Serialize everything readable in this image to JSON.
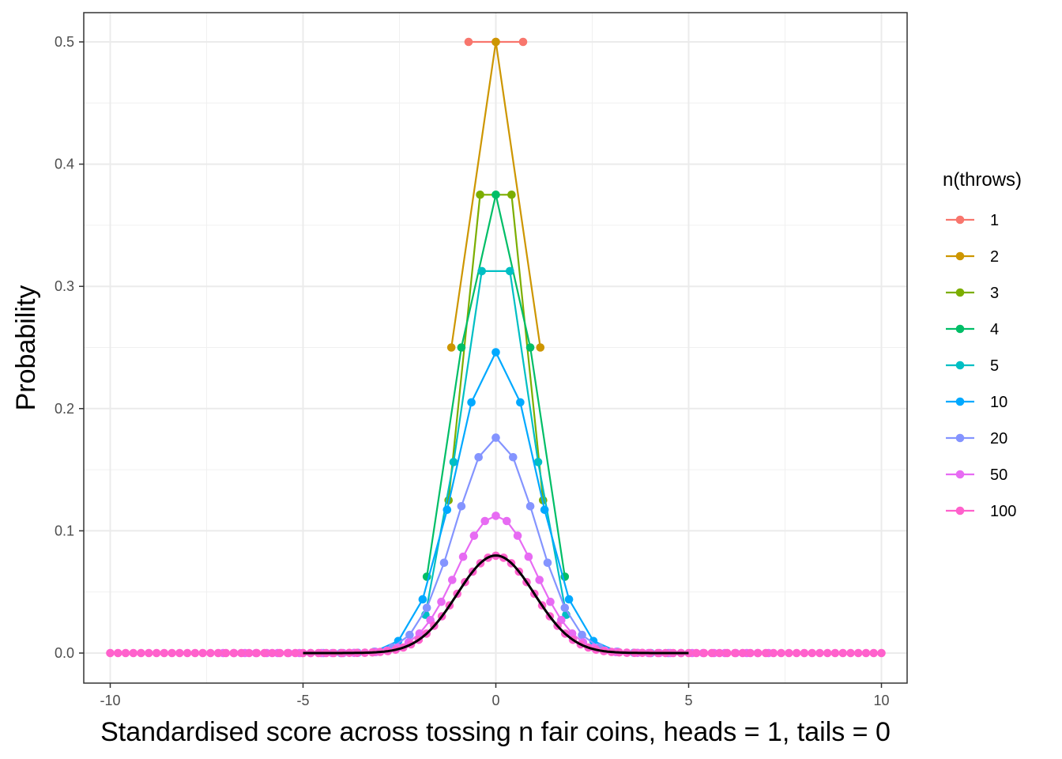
{
  "chart_data": {
    "type": "line",
    "title": "",
    "xlabel": "Standardised score across tossing n fair coins, heads = 1, tails = 0",
    "ylabel": "Probability",
    "xlim": [
      -10.4,
      10.9
    ],
    "ylim": [
      -0.025,
      0.524
    ],
    "x_ticks": [
      -10,
      -5,
      0,
      5,
      10
    ],
    "x_tick_labels": [
      "-10",
      "-5",
      "0",
      "5",
      "10"
    ],
    "y_ticks": [
      0,
      0.1,
      0.2,
      0.3,
      0.4,
      0.5
    ],
    "y_tick_labels": [
      "0.0",
      "0.1",
      "0.2",
      "0.3",
      "0.4",
      "0.5"
    ],
    "grid": true,
    "legend": {
      "title": "n(throws)",
      "position": "right"
    },
    "series": [
      {
        "name": "1",
        "color": "#F8766D",
        "x": [
          -0.7071,
          0,
          0.7071
        ],
        "y": [
          0.5,
          0.5,
          0.5
        ]
      },
      {
        "name": "2",
        "color": "#CD9600",
        "x": [
          -1.1547,
          0,
          1.1547
        ],
        "y": [
          0.25,
          0.5,
          0.25
        ]
      },
      {
        "name": "3",
        "color": "#7CAE00",
        "x": [
          -1.2247,
          -0.4082,
          0.4082,
          1.2247
        ],
        "y": [
          0.125,
          0.375,
          0.375,
          0.125
        ]
      },
      {
        "name": "4",
        "color": "#00BE67",
        "x": [
          -1.7889,
          -0.8944,
          0,
          0.8944,
          1.7889
        ],
        "y": [
          0.0625,
          0.25,
          0.375,
          0.25,
          0.0625
        ]
      },
      {
        "name": "5",
        "color": "#00BFC4",
        "x": [
          -1.8257,
          -1.0954,
          -0.3651,
          0.3651,
          1.0954,
          1.8257
        ],
        "y": [
          0.0313,
          0.1563,
          0.3125,
          0.3125,
          0.1563,
          0.0313
        ]
      },
      {
        "name": "10",
        "color": "#00A9FF",
        "x": [
          -2.3355,
          -1.8683,
          -1.4012,
          -0.9342,
          -0.4671,
          0,
          0.4671,
          0.9342,
          1.4012,
          1.8683,
          2.3355
        ],
        "y": [
          0.001,
          0.0098,
          0.0439,
          0.1172,
          0.2051,
          0.2461,
          0.2051,
          0.1172,
          0.0439,
          0.0098,
          0.001
        ]
      },
      {
        "name": "20",
        "color": "#8494FF",
        "x": [
          -2.4518,
          -2.1292,
          -1.8066,
          -1.484,
          -1.1614,
          -0.8388,
          -0.5162,
          -0.1936,
          0,
          0.1936,
          0.5162,
          0.8388,
          1.1614,
          1.484,
          1.8066,
          2.1292,
          2.4518
        ],
        "y": [
          0.0046,
          0.0148,
          0.037,
          0.0739,
          0.1201,
          0.1602,
          0.1762,
          0.1602,
          0.1762,
          0.1602,
          0.1602,
          0.1201,
          0.0739,
          0.037,
          0.0148,
          0.0046,
          0.0011
        ]
      },
      {
        "name": "50",
        "color": "#E76BF3",
        "x": [
          -3.2,
          -2.8,
          -2.4,
          -2.0,
          -1.6,
          -1.2,
          -0.8,
          -0.4,
          0,
          0.4,
          0.8,
          1.2,
          1.6,
          2.0,
          2.4,
          2.8,
          3.2
        ],
        "y": [
          0.0016,
          0.0057,
          0.016,
          0.0419,
          0.0788,
          0.1123,
          0.1123,
          0.1123,
          0.1123,
          0.1123,
          0.1123,
          0.0788,
          0.0419,
          0.016,
          0.0057,
          0.0016,
          0.0004
        ]
      },
      {
        "name": "100",
        "color": "#FF61CC",
        "x": [],
        "y": []
      }
    ],
    "normal_curve": {
      "name": "",
      "color": "#000000",
      "xlim": [
        -5,
        5
      ],
      "peak": 0.0798
    }
  }
}
